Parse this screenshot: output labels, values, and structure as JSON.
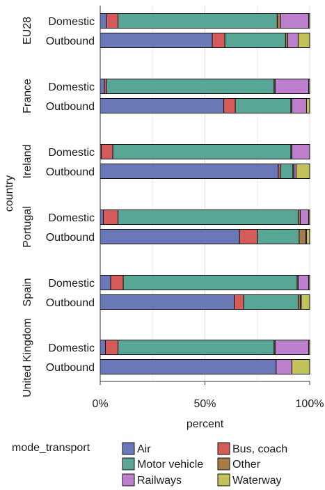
{
  "chart_data": {
    "type": "bar",
    "orientation": "horizontal",
    "stacked": true,
    "xlabel": "percent",
    "ylabel": "country",
    "xlim": [
      0,
      100
    ],
    "x_ticks": [
      0,
      50,
      100
    ],
    "x_tick_labels": [
      "0%",
      "50%",
      "100%"
    ],
    "grid": true,
    "legend_position": "bottom",
    "legend_title": "mode_transport",
    "stack_order": [
      "Air",
      "Bus, coach",
      "Motor vehicle",
      "Other",
      "Railways",
      "Waterway"
    ],
    "colors": {
      "Air": "#6b78b8",
      "Bus, coach": "#d55b5b",
      "Motor vehicle": "#5aa696",
      "Other": "#a67c4a",
      "Railways": "#bb7fce",
      "Waterway": "#c2c25a"
    },
    "facets": [
      {
        "name": "EU28",
        "rows": [
          {
            "label": "Domestic",
            "values": {
              "Air": 3,
              "Bus, coach": 5.5,
              "Motor vehicle": 76,
              "Other": 1.5,
              "Railways": 13.5,
              "Waterway": 0.5
            }
          },
          {
            "label": "Outbound",
            "values": {
              "Air": 53.5,
              "Bus, coach": 6,
              "Motor vehicle": 29,
              "Other": 1,
              "Railways": 5,
              "Waterway": 5.5
            }
          }
        ]
      },
      {
        "name": "France",
        "rows": [
          {
            "label": "Domestic",
            "values": {
              "Air": 2,
              "Bus, coach": 1,
              "Motor vehicle": 80,
              "Other": 0.5,
              "Railways": 16,
              "Waterway": 0.5
            }
          },
          {
            "label": "Outbound",
            "values": {
              "Air": 59,
              "Bus, coach": 5.5,
              "Motor vehicle": 26.5,
              "Other": 0.5,
              "Railways": 7,
              "Waterway": 1.5
            }
          }
        ]
      },
      {
        "name": "Ireland",
        "rows": [
          {
            "label": "Domestic",
            "values": {
              "Air": 0.5,
              "Bus, coach": 5.5,
              "Motor vehicle": 85,
              "Other": 0.5,
              "Railways": 8.5,
              "Waterway": 0
            }
          },
          {
            "label": "Outbound",
            "values": {
              "Air": 85,
              "Bus, coach": 1,
              "Motor vehicle": 6,
              "Other": 0.5,
              "Railways": 1,
              "Waterway": 6.5
            }
          }
        ]
      },
      {
        "name": "Portugal",
        "rows": [
          {
            "label": "Domestic",
            "values": {
              "Air": 1.5,
              "Bus, coach": 7,
              "Motor vehicle": 86,
              "Other": 1,
              "Railways": 4,
              "Waterway": 0.5
            }
          },
          {
            "label": "Outbound",
            "values": {
              "Air": 66.5,
              "Bus, coach": 8.5,
              "Motor vehicle": 20,
              "Other": 3,
              "Railways": 0.5,
              "Waterway": 1.5
            }
          }
        ]
      },
      {
        "name": "Spain",
        "rows": [
          {
            "label": "Domestic",
            "values": {
              "Air": 5,
              "Bus, coach": 6,
              "Motor vehicle": 83,
              "Other": 0.5,
              "Railways": 5,
              "Waterway": 0.5
            }
          },
          {
            "label": "Outbound",
            "values": {
              "Air": 64,
              "Bus, coach": 4.5,
              "Motor vehicle": 26,
              "Other": 1,
              "Railways": 0.5,
              "Waterway": 4
            }
          }
        ]
      },
      {
        "name": "United Kingdom",
        "rows": [
          {
            "label": "Domestic",
            "values": {
              "Air": 2.5,
              "Bus, coach": 6,
              "Motor vehicle": 74.5,
              "Other": 0.5,
              "Railways": 16,
              "Waterway": 0.5
            }
          },
          {
            "label": "Outbound",
            "values": {
              "Air": 84,
              "Bus, coach": 0,
              "Motor vehicle": 0,
              "Other": 0,
              "Railways": 7.5,
              "Waterway": 8.5
            }
          }
        ]
      }
    ]
  }
}
